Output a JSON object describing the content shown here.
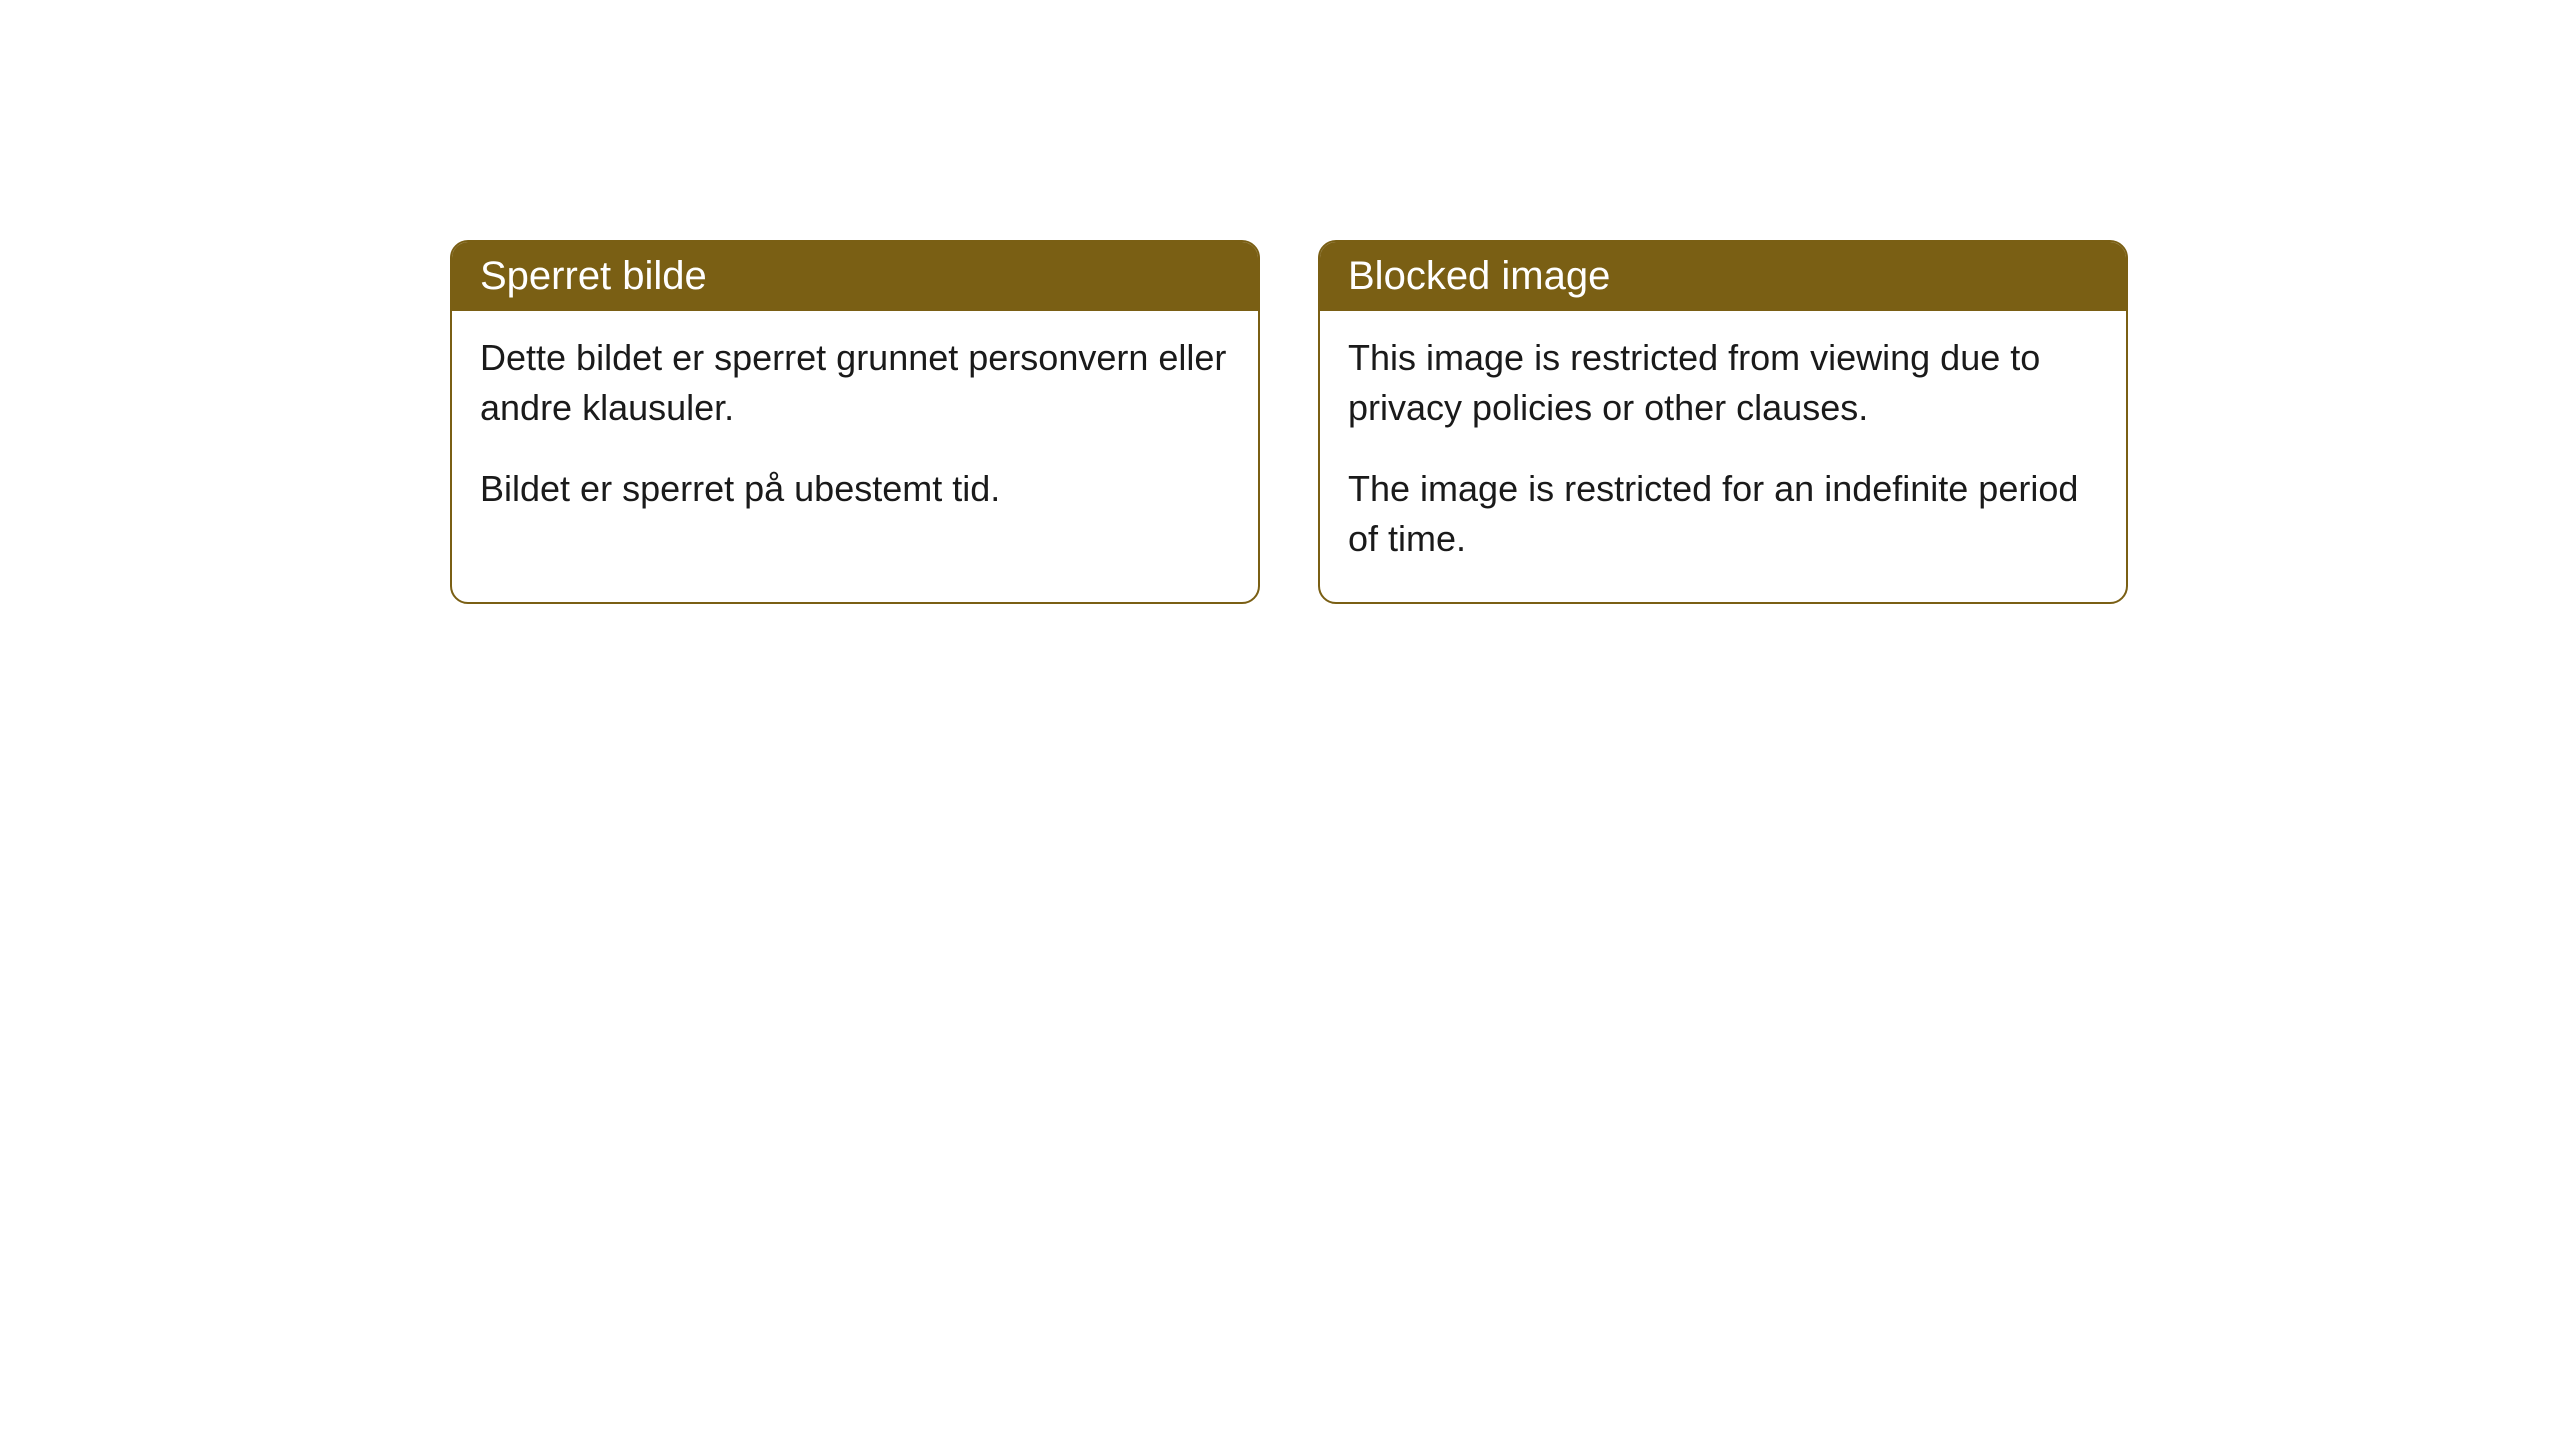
{
  "cards": [
    {
      "title": "Sperret bilde",
      "paragraph1": "Dette bildet er sperret grunnet personvern eller andre klausuler.",
      "paragraph2": "Bildet er sperret på ubestemt tid."
    },
    {
      "title": "Blocked image",
      "paragraph1": "This image is restricted from viewing due to privacy policies or other clauses.",
      "paragraph2": "The image is restricted for an indefinite period of time."
    }
  ],
  "styling": {
    "header_bg_color": "#7a5f14",
    "header_text_color": "#ffffff",
    "border_color": "#7a5f14",
    "body_bg_color": "#ffffff",
    "body_text_color": "#1a1a1a",
    "border_radius": 18,
    "header_fontsize": 40,
    "body_fontsize": 36
  }
}
